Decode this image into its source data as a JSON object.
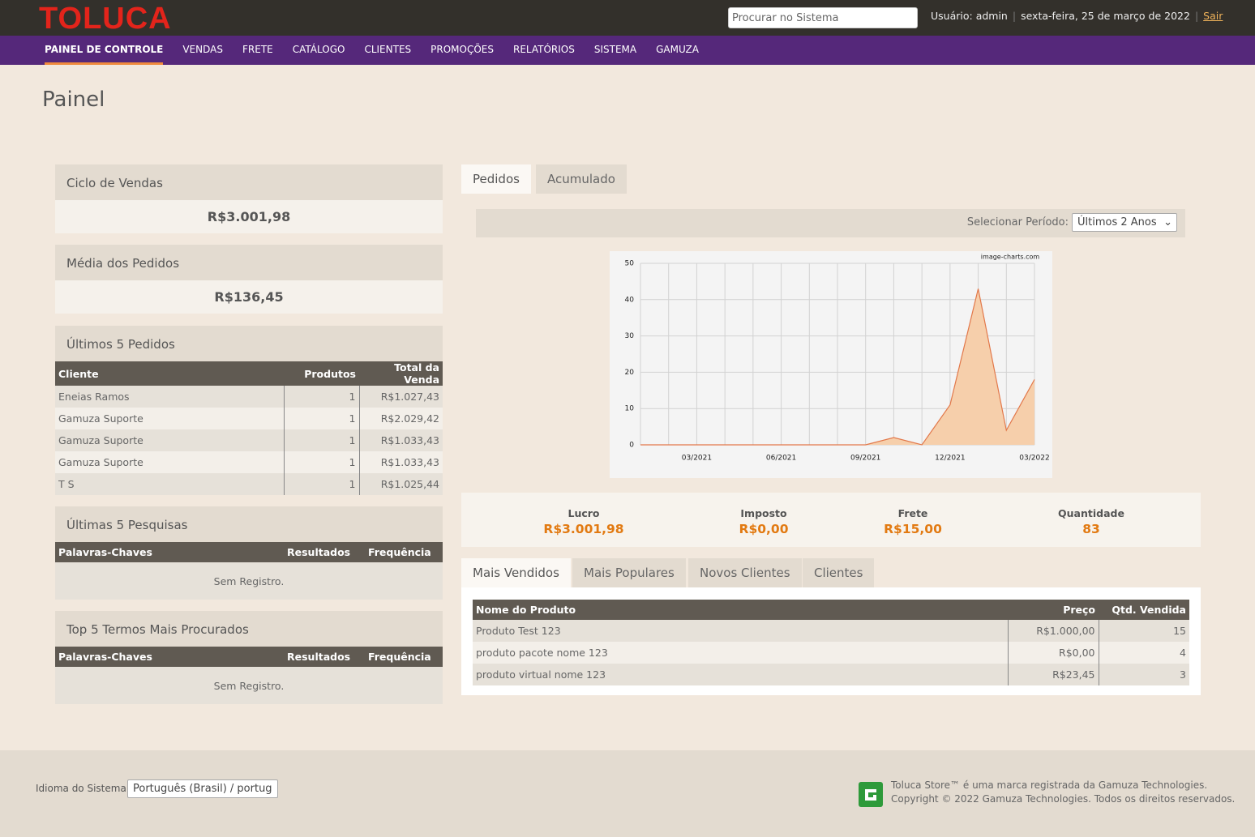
{
  "header": {
    "logo": "TOLUCA",
    "search_placeholder": "Procurar no Sistema",
    "user": "Usuário: admin",
    "date": "sexta-feira, 25 de março de 2022",
    "logout": "Sair"
  },
  "nav": [
    "PAINEL DE CONTROLE",
    "VENDAS",
    "FRETE",
    "CATÁLOGO",
    "CLIENTES",
    "PROMOÇÕES",
    "RELATÓRIOS",
    "SISTEMA",
    "GAMUZA"
  ],
  "page_title": "Painel",
  "sales_cycle": {
    "title": "Ciclo de Vendas",
    "value": "R$3.001,98"
  },
  "avg_orders": {
    "title": "Média dos Pedidos",
    "value": "R$136,45"
  },
  "last_orders": {
    "title": "Últimos 5 Pedidos",
    "columns": [
      "Cliente",
      "Produtos",
      "Total da Venda"
    ],
    "rows": [
      [
        "Eneias Ramos",
        1,
        "R$1.027,43"
      ],
      [
        "Gamuza Suporte",
        1,
        "R$2.029,42"
      ],
      [
        "Gamuza Suporte",
        1,
        "R$1.033,43"
      ],
      [
        "Gamuza Suporte",
        1,
        "R$1.033,43"
      ],
      [
        "T S",
        1,
        "R$1.025,44"
      ]
    ]
  },
  "last_searches": {
    "title": "Últimas 5 Pesquisas",
    "columns": [
      "Palavras-Chaves",
      "Resultados",
      "Frequência"
    ],
    "empty": "Sem Registro."
  },
  "top_terms": {
    "title": "Top 5 Termos Mais Procurados",
    "columns": [
      "Palavras-Chaves",
      "Resultados",
      "Frequência"
    ],
    "empty": "Sem Registro."
  },
  "chart_tabs": [
    "Pedidos",
    "Acumulado"
  ],
  "period_label": "Selecionar Período:",
  "period_value": "Últimos 2 Anos",
  "chart_data": {
    "type": "area",
    "watermark": "image-charts.com",
    "categories": [
      null,
      null,
      "03/2021",
      null,
      null,
      "06/2021",
      null,
      null,
      "09/2021",
      null,
      null,
      "12/2021",
      null,
      null,
      "03/2022"
    ],
    "values": [
      0,
      0,
      0,
      0,
      0,
      0,
      0,
      0,
      0,
      2,
      0,
      11,
      43,
      4,
      18
    ],
    "color": "#f6cfab",
    "line_color": "#e2784a",
    "ylim": [
      0,
      50
    ],
    "yticks": [
      0,
      10,
      20,
      30,
      40,
      50
    ],
    "grid": true
  },
  "stats": [
    {
      "label": "Lucro",
      "value": "R$3.001,98"
    },
    {
      "label": "Imposto",
      "value": "R$0,00"
    },
    {
      "label": "Frete",
      "value": "R$15,00"
    },
    {
      "label": "Quantidade",
      "value": 83
    }
  ],
  "product_tabs": [
    "Mais Vendidos",
    "Mais Populares",
    "Novos Clientes",
    "Clientes"
  ],
  "products": {
    "columns": [
      "Nome do Produto",
      "Preço",
      "Qtd. Vendida"
    ],
    "rows": [
      [
        "Produto Test 123",
        "R$1.000,00",
        15
      ],
      [
        "produto pacote nome 123",
        "R$0,00",
        4
      ],
      [
        "produto virtual nome 123",
        "R$23,45",
        3
      ]
    ]
  },
  "footer": {
    "language_label": "Idioma do Sistema:",
    "language_value": "Português (Brasil) / portug",
    "trademark": "Toluca Store™ é uma marca registrada da Gamuza Technologies.",
    "copyright": "Copyright © 2022 Gamuza Technologies. Todos os direitos reservados."
  }
}
